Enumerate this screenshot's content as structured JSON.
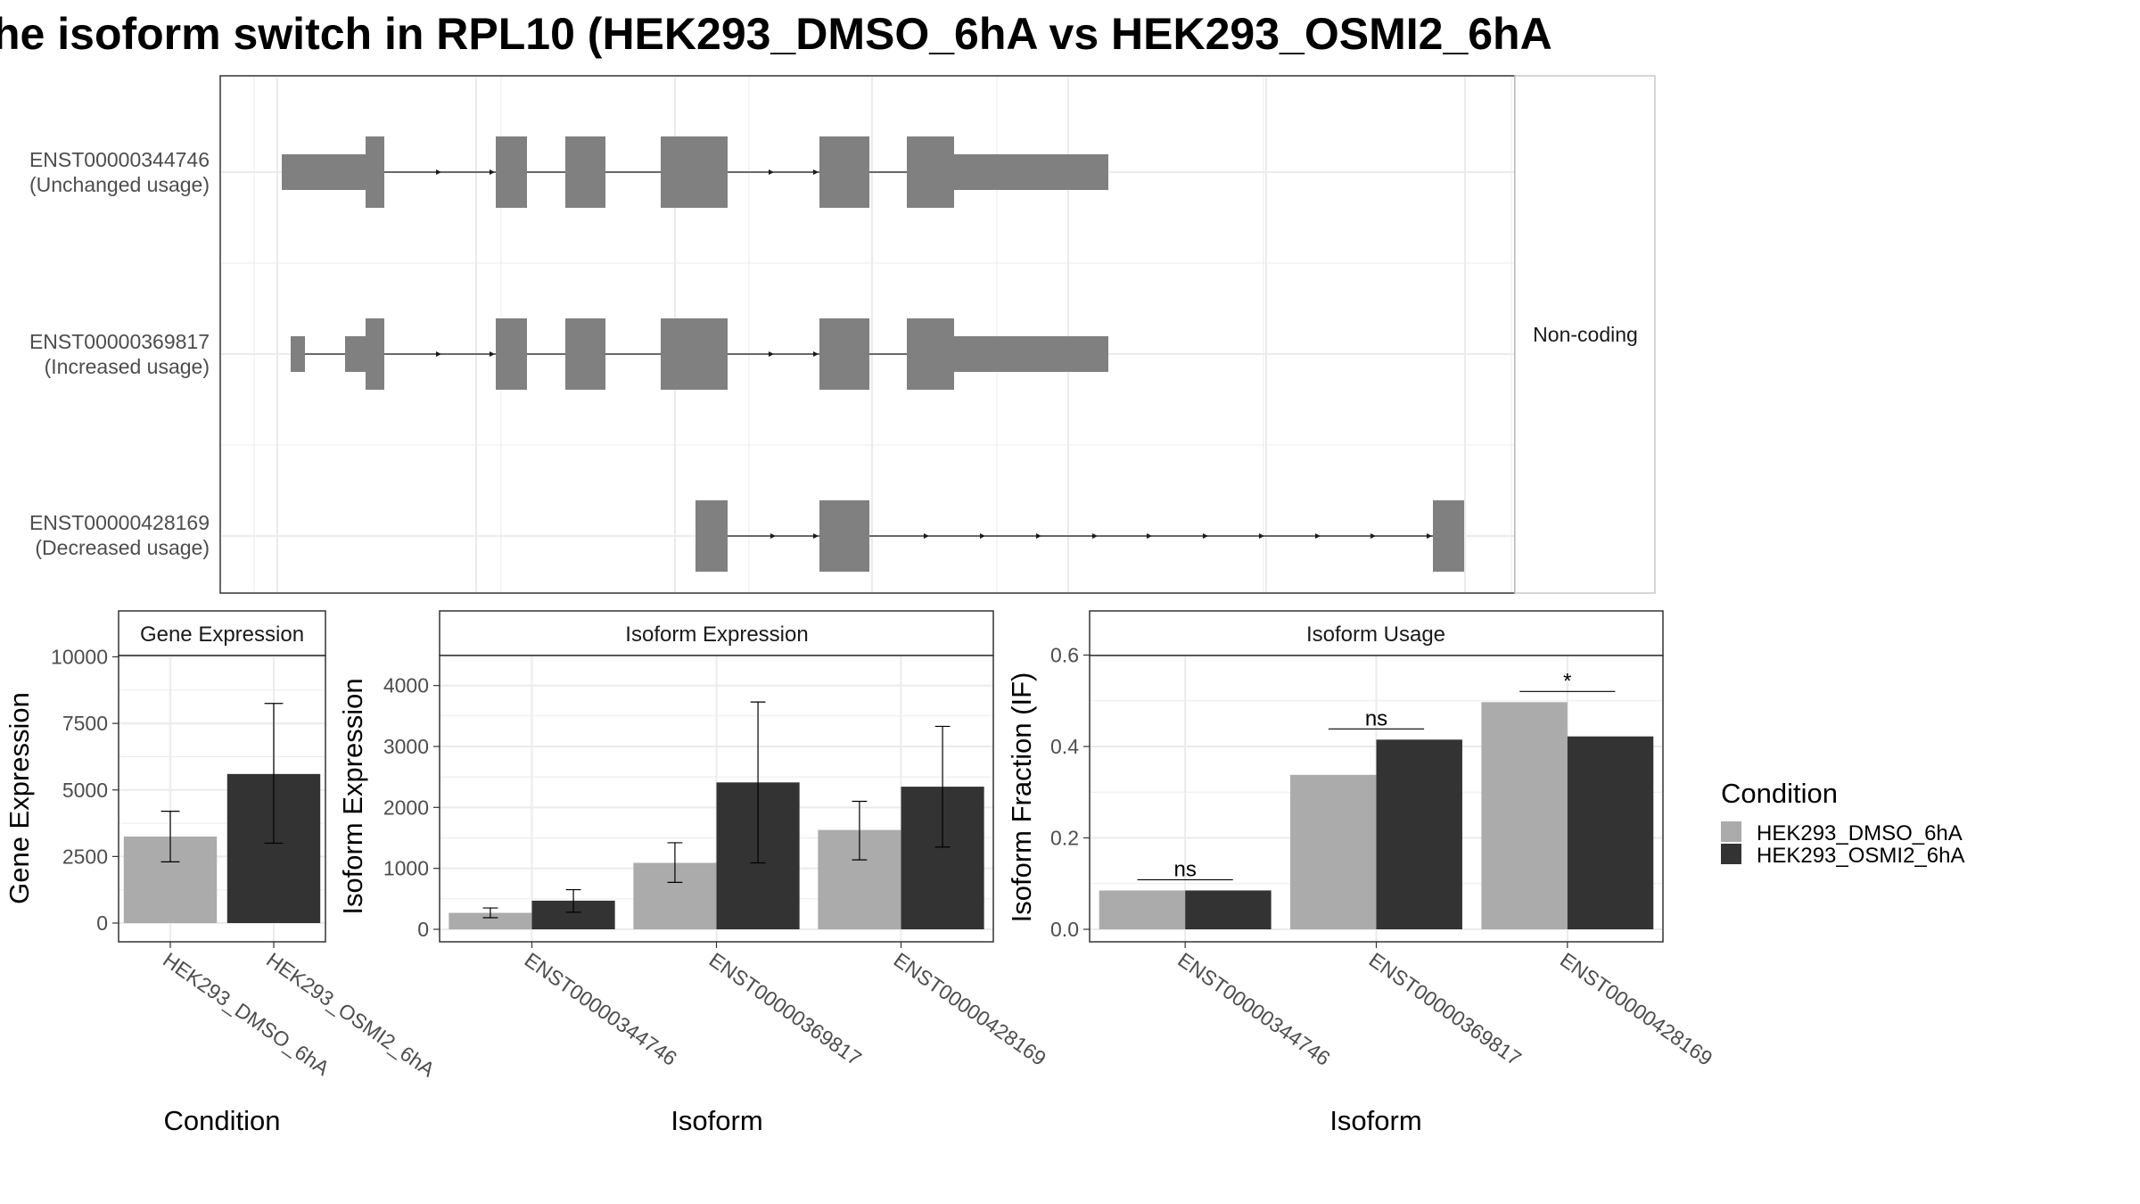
{
  "title": "he isoform switch in RPL10 (HEK293_DMSO_6hA vs HEK293_OSMI2_6hA",
  "colors": {
    "dmso": "#ababab",
    "osmi2": "#333333",
    "exon": "#808080",
    "grid": "#ebebeb",
    "panel_border": "#333333"
  },
  "chart_data": [
    {
      "type": "gene-structure",
      "facet_label": "Non-coding",
      "transcripts": [
        {
          "id": "ENST00000344746",
          "usage_label": "(Unchanged usage)"
        },
        {
          "id": "ENST00000369817",
          "usage_label": "(Increased usage)"
        },
        {
          "id": "ENST00000428169",
          "usage_label": "(Decreased usage)"
        }
      ]
    },
    {
      "type": "bar",
      "panel_title": "Gene Expression",
      "xlabel": "Condition",
      "ylabel": "Gene Expression",
      "ylim": [
        0,
        10000
      ],
      "yticks": [
        0,
        2500,
        5000,
        7500,
        10000
      ],
      "categories": [
        "HEK293_DMSO_6hA",
        "HEK293_OSMI2_6hA"
      ],
      "values": [
        3250,
        5600
      ],
      "error_low": [
        2300,
        3000
      ],
      "error_high": [
        4200,
        8250
      ]
    },
    {
      "type": "bar",
      "panel_title": "Isoform Expression",
      "xlabel": "Isoform",
      "ylabel": "Isoform Expression",
      "ylim": [
        0,
        4500
      ],
      "yticks": [
        0,
        1000,
        2000,
        3000,
        4000
      ],
      "categories": [
        "ENST00000344746",
        "ENST00000369817",
        "ENST00000428169"
      ],
      "series": [
        {
          "name": "HEK293_DMSO_6hA",
          "values": [
            270,
            1090,
            1630
          ],
          "error_low": [
            190,
            770,
            1140
          ],
          "error_high": [
            350,
            1420,
            2100
          ]
        },
        {
          "name": "HEK293_OSMI2_6hA",
          "values": [
            470,
            2410,
            2340
          ],
          "error_low": [
            280,
            1090,
            1350
          ],
          "error_high": [
            650,
            3730,
            3330
          ]
        }
      ]
    },
    {
      "type": "bar",
      "panel_title": "Isoform Usage",
      "xlabel": "Isoform",
      "ylabel": "Isoform Fraction (IF)",
      "ylim": [
        0,
        0.6
      ],
      "yticks": [
        "0.0",
        "0.2",
        "0.4",
        "0.6"
      ],
      "categories": [
        "ENST00000344746",
        "ENST00000369817",
        "ENST00000428169"
      ],
      "series": [
        {
          "name": "HEK293_DMSO_6hA",
          "values": [
            0.085,
            0.338,
            0.497
          ]
        },
        {
          "name": "HEK293_OSMI2_6hA",
          "values": [
            0.085,
            0.415,
            0.422
          ]
        }
      ],
      "significance": [
        "ns",
        "ns",
        "*"
      ]
    }
  ],
  "legend": {
    "title": "Condition",
    "items": [
      "HEK293_DMSO_6hA",
      "HEK293_OSMI2_6hA"
    ]
  }
}
